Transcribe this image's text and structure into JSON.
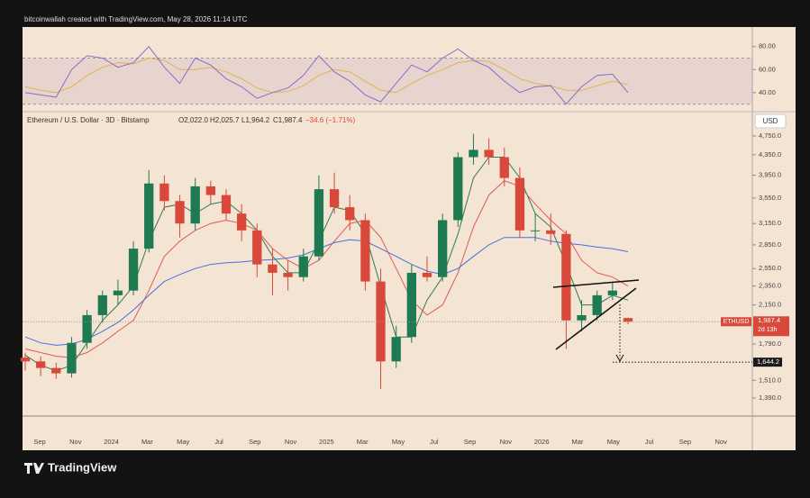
{
  "header": {
    "credit": "bitcoinwallah created with TradingView.com, May 28, 2026 11:14 UTC"
  },
  "chart_data": [
    {
      "type": "candlestick",
      "title": "Ethereum / U.S. Dollar · 3D · Bitstamp",
      "legend": {
        "open": "O2,022.0",
        "high": "H2,025.7",
        "low": "L1,964.2",
        "close": "C1,987.4",
        "change": "−34.6 (−1.71%)"
      },
      "currency": "USD",
      "x_labels": [
        "Sep",
        "Nov",
        "2024",
        "Mar",
        "May",
        "Jul",
        "Sep",
        "Nov",
        "2025",
        "Mar",
        "May",
        "Jul",
        "Sep",
        "Nov",
        "2026",
        "Mar",
        "May",
        "Jul",
        "Sep",
        "Nov"
      ],
      "open": [
        1680,
        1650,
        1600,
        1560,
        1800,
        2050,
        2250,
        2300,
        2800,
        3800,
        3500,
        3150,
        3750,
        3600,
        3300,
        3050,
        2600,
        2500,
        2450,
        2700,
        3700,
        3400,
        3200,
        2400,
        1650,
        1850,
        2500,
        2450,
        3200,
        4300,
        4450,
        4300,
        3900,
        3050,
        3050,
        3000,
        2000,
        2050,
        2250,
        2022
      ],
      "high": [
        1720,
        1690,
        1640,
        1850,
        2100,
        2300,
        2420,
        2900,
        4050,
        3950,
        3600,
        3900,
        3850,
        3700,
        3450,
        3150,
        2800,
        2650,
        2800,
        3950,
        4000,
        3600,
        3300,
        2550,
        1950,
        2600,
        2700,
        3300,
        4400,
        4800,
        4700,
        4500,
        4100,
        3300,
        3300,
        3050,
        2200,
        2300,
        2400,
        2025.7
      ],
      "low": [
        1580,
        1540,
        1520,
        1530,
        1750,
        1980,
        2150,
        2250,
        2750,
        3350,
        2950,
        3050,
        3450,
        3200,
        2900,
        2450,
        2250,
        2300,
        2400,
        2650,
        3300,
        3050,
        2300,
        1450,
        1600,
        1800,
        2400,
        2400,
        3100,
        4150,
        4150,
        3750,
        2950,
        2900,
        2850,
        1750,
        1900,
        2000,
        2200,
        1964.2
      ],
      "close": [
        1650,
        1600,
        1560,
        1800,
        2050,
        2250,
        2300,
        2800,
        3800,
        3500,
        3150,
        3750,
        3600,
        3300,
        3050,
        2600,
        2500,
        2450,
        2700,
        3700,
        3400,
        3200,
        2400,
        1650,
        1850,
        2500,
        2450,
        3200,
        4300,
        4450,
        4300,
        3900,
        3050,
        3050,
        3000,
        2000,
        2050,
        2250,
        2300,
        1987.4
      ],
      "up_color": "#1f7a52",
      "down_color": "#d9493b",
      "moving_averages": [
        {
          "color": "#2f7d4f",
          "values": [
            1700,
            1620,
            1580,
            1620,
            1800,
            2000,
            2150,
            2350,
            2900,
            3400,
            3450,
            3300,
            3450,
            3500,
            3300,
            3050,
            2700,
            2500,
            2500,
            2900,
            3400,
            3350,
            3000,
            2350,
            1850,
            1850,
            2200,
            2450,
            3000,
            3900,
            4300,
            4300,
            3900,
            3300,
            3100,
            2600,
            2150,
            2150,
            2250,
            2200
          ]
        },
        {
          "color": "#e05a55",
          "values": [
            1750,
            1720,
            1690,
            1680,
            1720,
            1800,
            1900,
            2000,
            2300,
            2700,
            2900,
            3050,
            3150,
            3200,
            3150,
            3050,
            2800,
            2650,
            2550,
            2650,
            2900,
            3150,
            3200,
            2950,
            2550,
            2200,
            2050,
            2150,
            2500,
            3100,
            3600,
            3850,
            3750,
            3450,
            3200,
            3000,
            2650,
            2500,
            2450,
            2350
          ]
        },
        {
          "color": "#4a6fe0",
          "values": [
            1850,
            1800,
            1780,
            1790,
            1830,
            1900,
            1980,
            2100,
            2250,
            2400,
            2480,
            2550,
            2600,
            2620,
            2630,
            2650,
            2660,
            2680,
            2720,
            2800,
            2880,
            2920,
            2900,
            2800,
            2700,
            2600,
            2520,
            2480,
            2550,
            2700,
            2850,
            2950,
            2950,
            2950,
            2900,
            2870,
            2850,
            2820,
            2800,
            2760
          ]
        }
      ],
      "log_scale": true,
      "ylim": [
        1277,
        5300
      ],
      "yticks": [
        {
          "value": 4750,
          "label": "4,750.0"
        },
        {
          "value": 4350,
          "label": "4,350.0"
        },
        {
          "value": 3950,
          "label": "3,950.0"
        },
        {
          "value": 3550,
          "label": "3,550.0"
        },
        {
          "value": 3150,
          "label": "3,150.0"
        },
        {
          "value": 2850,
          "label": "2,850.0"
        },
        {
          "value": 2550,
          "label": "2,550.0"
        },
        {
          "value": 2350,
          "label": "2,350.0"
        },
        {
          "value": 2150,
          "label": "2,150.0"
        },
        {
          "value": 1790,
          "label": "1,790.0"
        },
        {
          "value": 1510,
          "label": "1,510.0"
        },
        {
          "value": 1390,
          "label": "1,390.0"
        }
      ],
      "last_price": {
        "symbol": "ETHUSD",
        "value": 1987.4,
        "label": "1,987.4",
        "countdown": "2d 13h"
      },
      "target": {
        "value": 1644.2,
        "label": "1,644.2"
      }
    },
    {
      "type": "line",
      "ylim": [
        25,
        97
      ],
      "yticks": [
        {
          "value": 80,
          "label": "80.00"
        },
        {
          "value": 60,
          "label": "60.00"
        },
        {
          "value": 40,
          "label": "40.00"
        }
      ],
      "band": [
        30,
        70
      ],
      "series": [
        {
          "color": "#8a6cc4",
          "values": [
            40,
            38,
            36,
            60,
            72,
            70,
            62,
            66,
            80,
            62,
            48,
            70,
            64,
            52,
            45,
            35,
            40,
            44,
            55,
            72,
            58,
            50,
            38,
            32,
            48,
            64,
            58,
            70,
            78,
            68,
            62,
            50,
            40,
            45,
            46,
            30,
            45,
            55,
            56,
            40
          ]
        },
        {
          "color": "#e2b24e",
          "values": [
            45,
            42,
            40,
            45,
            55,
            62,
            66,
            65,
            70,
            68,
            60,
            60,
            62,
            58,
            52,
            44,
            40,
            41,
            46,
            55,
            60,
            58,
            50,
            42,
            40,
            48,
            55,
            60,
            66,
            68,
            67,
            60,
            52,
            48,
            46,
            42,
            42,
            46,
            50,
            47
          ]
        }
      ]
    }
  ],
  "footer": {
    "logo": "TradingView"
  }
}
